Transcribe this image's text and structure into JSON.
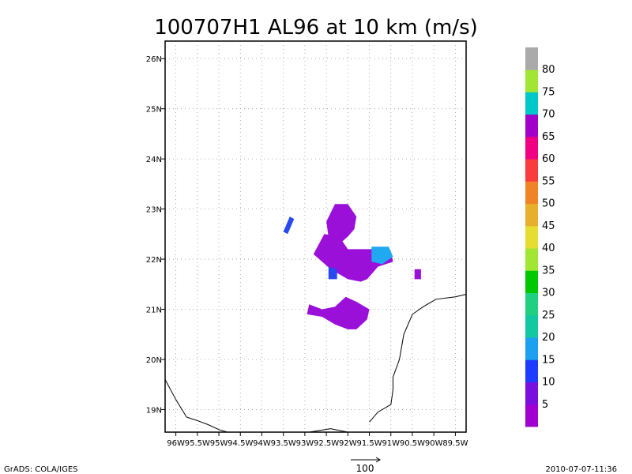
{
  "chart_data": {
    "type": "heatmap",
    "title": "100707H1 AL96 at 10 km (m/s)",
    "xlabel": "",
    "ylabel": "",
    "xlim": [
      -96.25,
      -89.25
    ],
    "ylim": [
      18.55,
      26.35
    ],
    "x_ticks": [
      {
        "value": -96.0,
        "label": "96W"
      },
      {
        "value": -95.5,
        "label": "95.5W"
      },
      {
        "value": -95.0,
        "label": "95W"
      },
      {
        "value": -94.5,
        "label": "94.5W"
      },
      {
        "value": -94.0,
        "label": "94W"
      },
      {
        "value": -93.5,
        "label": "93.5W"
      },
      {
        "value": -93.0,
        "label": "93W"
      },
      {
        "value": -92.5,
        "label": "92.5W"
      },
      {
        "value": -92.0,
        "label": "92W"
      },
      {
        "value": -91.5,
        "label": "91.5W"
      },
      {
        "value": -91.0,
        "label": "91W"
      },
      {
        "value": -90.5,
        "label": "90.5W"
      },
      {
        "value": -90.0,
        "label": "90W"
      },
      {
        "value": -89.5,
        "label": "89.5W"
      }
    ],
    "y_ticks": [
      {
        "value": 19,
        "label": "19N"
      },
      {
        "value": 20,
        "label": "20N"
      },
      {
        "value": 21,
        "label": "21N"
      },
      {
        "value": 22,
        "label": "22N"
      },
      {
        "value": 23,
        "label": "23N"
      },
      {
        "value": 24,
        "label": "24N"
      },
      {
        "value": 25,
        "label": "25N"
      },
      {
        "value": 26,
        "label": "26N"
      }
    ],
    "grid": true,
    "colorbar": {
      "labels": [
        "5",
        "10",
        "15",
        "20",
        "25",
        "30",
        "35",
        "40",
        "45",
        "50",
        "55",
        "60",
        "65",
        "70",
        "75",
        "80"
      ],
      "colors": [
        "#a000d0",
        "#7a10e0",
        "#1e3cff",
        "#1ea0f0",
        "#12c8a0",
        "#20d080",
        "#00c800",
        "#a0e632",
        "#e6dc32",
        "#e6af2d",
        "#f08228",
        "#fa3c3c",
        "#f00082",
        "#a000c8",
        "#00c8c8",
        "#a0e632",
        "#aaaaaa"
      ]
    },
    "regions": [
      {
        "name": "northern blob",
        "value_range": "5-10",
        "points": [
          [
            -92.3,
            23.1
          ],
          [
            -92.0,
            23.1
          ],
          [
            -91.8,
            22.85
          ],
          [
            -91.85,
            22.6
          ],
          [
            -92.0,
            22.45
          ],
          [
            -92.2,
            22.3
          ],
          [
            -92.45,
            22.45
          ],
          [
            -92.5,
            22.75
          ]
        ]
      },
      {
        "name": "central blob",
        "value_range": "5-10",
        "points": [
          [
            -92.55,
            22.5
          ],
          [
            -92.2,
            22.45
          ],
          [
            -92.0,
            22.2
          ],
          [
            -91.3,
            22.2
          ],
          [
            -91.0,
            22.15
          ],
          [
            -90.95,
            21.95
          ],
          [
            -91.3,
            21.85
          ],
          [
            -91.55,
            21.6
          ],
          [
            -91.7,
            21.55
          ],
          [
            -92.0,
            21.6
          ],
          [
            -92.4,
            21.8
          ],
          [
            -92.6,
            21.95
          ],
          [
            -92.8,
            22.1
          ]
        ]
      },
      {
        "name": "southern blob",
        "value_range": "5-10",
        "points": [
          [
            -92.9,
            21.1
          ],
          [
            -92.6,
            21.0
          ],
          [
            -92.3,
            21.05
          ],
          [
            -92.05,
            21.25
          ],
          [
            -91.8,
            21.15
          ],
          [
            -91.5,
            21.0
          ],
          [
            -91.55,
            20.8
          ],
          [
            -91.8,
            20.6
          ],
          [
            -92.0,
            20.6
          ],
          [
            -92.3,
            20.7
          ],
          [
            -92.6,
            20.85
          ],
          [
            -92.95,
            20.9
          ]
        ]
      },
      {
        "name": "eastern patch",
        "value_range": "15-20",
        "points": [
          [
            -91.45,
            22.25
          ],
          [
            -91.05,
            22.25
          ],
          [
            -90.95,
            22.05
          ],
          [
            -91.2,
            21.9
          ],
          [
            -91.45,
            21.95
          ]
        ]
      },
      {
        "name": "western patch",
        "value_range": "10-15",
        "points": [
          [
            -92.45,
            21.85
          ],
          [
            -92.25,
            21.8
          ],
          [
            -92.25,
            21.6
          ],
          [
            -92.45,
            21.6
          ]
        ]
      },
      {
        "name": "small northwest streak",
        "value_range": "10-15",
        "points": [
          [
            -93.35,
            22.85
          ],
          [
            -93.25,
            22.8
          ],
          [
            -93.4,
            22.5
          ],
          [
            -93.5,
            22.55
          ]
        ]
      },
      {
        "name": "small east blob",
        "value_range": "5-10",
        "points": [
          [
            -90.45,
            21.8
          ],
          [
            -90.3,
            21.8
          ],
          [
            -90.3,
            21.6
          ],
          [
            -90.45,
            21.6
          ]
        ]
      }
    ],
    "coastlines": [
      [
        [
          -96.25,
          19.6
        ],
        [
          -96.0,
          19.2
        ],
        [
          -95.75,
          18.85
        ],
        [
          -95.5,
          18.78
        ],
        [
          -95.25,
          18.7
        ],
        [
          -95.0,
          18.6
        ],
        [
          -94.8,
          18.55
        ]
      ],
      [
        [
          -92.9,
          18.55
        ],
        [
          -92.4,
          18.62
        ],
        [
          -92.0,
          18.55
        ]
      ],
      [
        [
          -91.5,
          18.75
        ],
        [
          -91.3,
          18.95
        ],
        [
          -91.0,
          19.1
        ],
        [
          -90.95,
          19.4
        ],
        [
          -90.95,
          19.65
        ],
        [
          -90.8,
          20.0
        ],
        [
          -90.7,
          20.5
        ],
        [
          -90.5,
          20.9
        ],
        [
          -90.25,
          21.05
        ],
        [
          -89.95,
          21.2
        ],
        [
          -89.5,
          21.25
        ],
        [
          -89.25,
          21.3
        ]
      ]
    ]
  },
  "footer": {
    "left": "GrADS: COLA/IGES",
    "center": "100",
    "right": "2010-07-07-11:36"
  }
}
